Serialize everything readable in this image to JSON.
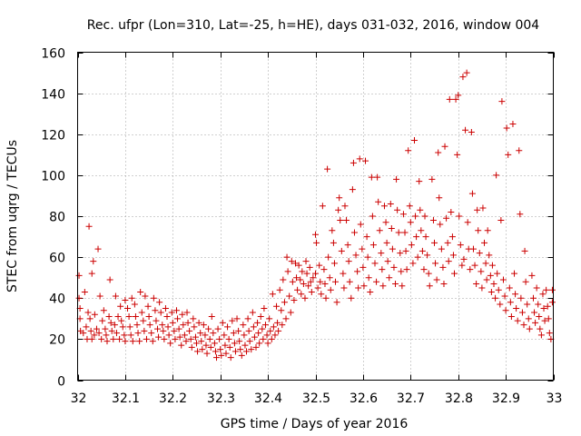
{
  "chart_data": {
    "type": "scatter",
    "title": "Rec. ufpr (Lon=310, Lat=-25, h=HE), days 031-032, 2016, window 004",
    "xlabel": "GPS time / Days of year 2016",
    "ylabel": "STEC from uqrg / TECUs",
    "xlim": [
      32,
      33
    ],
    "ylim": [
      0,
      160
    ],
    "x_ticks": [
      "32",
      "32.1",
      "32.2",
      "32.3",
      "32.4",
      "32.5",
      "32.6",
      "32.7",
      "32.8",
      "32.9",
      "33"
    ],
    "y_ticks": [
      "0",
      "20",
      "40",
      "60",
      "80",
      "100",
      "120",
      "140",
      "160"
    ],
    "grid": true,
    "marker": "plus",
    "color": "#cc0000",
    "points": [
      [
        32.003,
        40
      ],
      [
        32.003,
        51
      ],
      [
        32.005,
        35
      ],
      [
        32.005,
        30
      ],
      [
        32.006,
        24
      ],
      [
        32.012,
        23
      ],
      [
        32.015,
        43
      ],
      [
        32.018,
        26
      ],
      [
        32.02,
        20
      ],
      [
        32.022,
        33
      ],
      [
        32.024,
        75
      ],
      [
        32.026,
        30
      ],
      [
        32.028,
        24
      ],
      [
        32.03,
        52
      ],
      [
        32.03,
        20
      ],
      [
        32.033,
        58
      ],
      [
        32.035,
        22
      ],
      [
        32.036,
        32
      ],
      [
        32.04,
        25
      ],
      [
        32.043,
        64
      ],
      [
        32.045,
        23
      ],
      [
        32.047,
        41
      ],
      [
        32.05,
        20
      ],
      [
        32.052,
        29
      ],
      [
        32.055,
        34
      ],
      [
        32.058,
        25
      ],
      [
        32.06,
        22
      ],
      [
        32.062,
        19
      ],
      [
        32.066,
        31
      ],
      [
        32.068,
        49
      ],
      [
        32.07,
        28
      ],
      [
        32.072,
        24
      ],
      [
        32.075,
        20
      ],
      [
        32.078,
        27
      ],
      [
        32.08,
        41
      ],
      [
        32.082,
        23
      ],
      [
        32.085,
        31
      ],
      [
        32.088,
        20
      ],
      [
        32.09,
        36
      ],
      [
        32.092,
        29
      ],
      [
        32.095,
        26
      ],
      [
        32.098,
        22
      ],
      [
        32.1,
        39
      ],
      [
        32.1,
        19
      ],
      [
        32.105,
        35
      ],
      [
        32.108,
        31
      ],
      [
        32.11,
        26
      ],
      [
        32.112,
        22
      ],
      [
        32.114,
        40
      ],
      [
        32.116,
        19
      ],
      [
        32.12,
        37
      ],
      [
        32.122,
        31
      ],
      [
        32.125,
        27
      ],
      [
        32.127,
        23
      ],
      [
        32.13,
        19
      ],
      [
        32.132,
        43
      ],
      [
        32.135,
        33
      ],
      [
        32.138,
        29
      ],
      [
        32.14,
        24
      ],
      [
        32.142,
        41
      ],
      [
        32.145,
        20
      ],
      [
        32.148,
        36
      ],
      [
        32.15,
        31
      ],
      [
        32.152,
        27
      ],
      [
        32.155,
        23
      ],
      [
        32.158,
        19
      ],
      [
        32.16,
        40
      ],
      [
        32.163,
        34
      ],
      [
        32.165,
        29
      ],
      [
        32.168,
        25
      ],
      [
        32.17,
        21
      ],
      [
        32.172,
        38
      ],
      [
        32.175,
        33
      ],
      [
        32.178,
        27
      ],
      [
        32.18,
        24
      ],
      [
        32.182,
        20
      ],
      [
        32.185,
        35
      ],
      [
        32.188,
        31
      ],
      [
        32.19,
        26
      ],
      [
        32.192,
        22
      ],
      [
        32.195,
        18
      ],
      [
        32.198,
        33
      ],
      [
        32.2,
        28
      ],
      [
        32.203,
        24
      ],
      [
        32.205,
        20
      ],
      [
        32.208,
        34
      ],
      [
        32.21,
        30
      ],
      [
        32.213,
        25
      ],
      [
        32.215,
        21
      ],
      [
        32.218,
        17
      ],
      [
        32.22,
        32
      ],
      [
        32.222,
        27
      ],
      [
        32.225,
        22
      ],
      [
        32.228,
        19
      ],
      [
        32.23,
        33
      ],
      [
        32.232,
        28
      ],
      [
        32.235,
        24
      ],
      [
        32.238,
        20
      ],
      [
        32.24,
        16
      ],
      [
        32.243,
        30
      ],
      [
        32.245,
        26
      ],
      [
        32.248,
        21
      ],
      [
        32.25,
        18
      ],
      [
        32.252,
        14
      ],
      [
        32.255,
        28
      ],
      [
        32.258,
        23
      ],
      [
        32.26,
        19
      ],
      [
        32.262,
        15
      ],
      [
        32.265,
        27
      ],
      [
        32.268,
        22
      ],
      [
        32.27,
        17
      ],
      [
        32.272,
        13
      ],
      [
        32.275,
        25
      ],
      [
        32.278,
        20
      ],
      [
        32.28,
        16
      ],
      [
        32.282,
        31
      ],
      [
        32.285,
        23
      ],
      [
        32.288,
        18
      ],
      [
        32.29,
        14
      ],
      [
        32.292,
        11
      ],
      [
        32.295,
        25
      ],
      [
        32.298,
        20
      ],
      [
        32.3,
        15
      ],
      [
        32.302,
        12
      ],
      [
        32.305,
        28
      ],
      [
        32.308,
        22
      ],
      [
        32.31,
        17
      ],
      [
        32.312,
        13
      ],
      [
        32.315,
        26
      ],
      [
        32.318,
        20
      ],
      [
        32.32,
        16
      ],
      [
        32.322,
        11
      ],
      [
        32.325,
        29
      ],
      [
        32.328,
        23
      ],
      [
        32.33,
        18
      ],
      [
        32.332,
        14
      ],
      [
        32.335,
        30
      ],
      [
        32.338,
        24
      ],
      [
        32.34,
        19
      ],
      [
        32.342,
        15
      ],
      [
        32.345,
        12
      ],
      [
        32.348,
        27
      ],
      [
        32.35,
        22
      ],
      [
        32.352,
        17
      ],
      [
        32.355,
        14
      ],
      [
        32.358,
        30
      ],
      [
        32.36,
        24
      ],
      [
        32.362,
        19
      ],
      [
        32.365,
        15
      ],
      [
        32.368,
        33
      ],
      [
        32.37,
        26
      ],
      [
        32.372,
        21
      ],
      [
        32.375,
        16
      ],
      [
        32.378,
        28
      ],
      [
        32.38,
        23
      ],
      [
        32.382,
        18
      ],
      [
        32.385,
        31
      ],
      [
        32.388,
        25
      ],
      [
        32.39,
        20
      ],
      [
        32.392,
        35
      ],
      [
        32.395,
        27
      ],
      [
        32.398,
        22
      ],
      [
        32.4,
        18
      ],
      [
        32.403,
        30
      ],
      [
        32.405,
        24
      ],
      [
        32.408,
        20
      ],
      [
        32.41,
        42
      ],
      [
        32.412,
        26
      ],
      [
        32.415,
        22
      ],
      [
        32.418,
        36
      ],
      [
        32.42,
        28
      ],
      [
        32.422,
        24
      ],
      [
        32.425,
        44
      ],
      [
        32.428,
        34
      ],
      [
        32.43,
        27
      ],
      [
        32.432,
        49
      ],
      [
        32.435,
        38
      ],
      [
        32.438,
        30
      ],
      [
        32.44,
        60
      ],
      [
        32.442,
        53
      ],
      [
        32.445,
        41
      ],
      [
        32.448,
        33
      ],
      [
        32.45,
        58
      ],
      [
        32.452,
        48
      ],
      [
        32.455,
        39
      ],
      [
        32.458,
        57
      ],
      [
        32.46,
        50
      ],
      [
        32.462,
        44
      ],
      [
        32.465,
        56
      ],
      [
        32.468,
        49
      ],
      [
        32.47,
        42
      ],
      [
        32.472,
        53
      ],
      [
        32.475,
        47
      ],
      [
        32.478,
        40
      ],
      [
        32.48,
        58
      ],
      [
        32.482,
        52
      ],
      [
        32.485,
        46
      ],
      [
        32.488,
        55
      ],
      [
        32.49,
        48
      ],
      [
        32.492,
        43
      ],
      [
        32.495,
        50
      ],
      [
        32.5,
        52
      ],
      [
        32.5,
        71
      ],
      [
        32.502,
        67
      ],
      [
        32.505,
        45
      ],
      [
        32.508,
        56
      ],
      [
        32.51,
        48
      ],
      [
        32.512,
        42
      ],
      [
        32.515,
        85
      ],
      [
        32.518,
        54
      ],
      [
        32.52,
        47
      ],
      [
        32.522,
        40
      ],
      [
        32.525,
        103
      ],
      [
        32.527,
        60
      ],
      [
        32.53,
        50
      ],
      [
        32.532,
        44
      ],
      [
        32.535,
        73
      ],
      [
        32.538,
        67
      ],
      [
        32.54,
        57
      ],
      [
        32.542,
        48
      ],
      [
        32.545,
        38
      ],
      [
        32.548,
        83
      ],
      [
        32.55,
        89
      ],
      [
        32.552,
        78
      ],
      [
        32.555,
        63
      ],
      [
        32.558,
        52
      ],
      [
        32.56,
        45
      ],
      [
        32.562,
        85
      ],
      [
        32.565,
        78
      ],
      [
        32.568,
        66
      ],
      [
        32.57,
        58
      ],
      [
        32.572,
        48
      ],
      [
        32.575,
        40
      ],
      [
        32.578,
        93
      ],
      [
        32.58,
        106
      ],
      [
        32.582,
        72
      ],
      [
        32.585,
        61
      ],
      [
        32.588,
        53
      ],
      [
        32.59,
        45
      ],
      [
        32.593,
        108
      ],
      [
        32.595,
        76
      ],
      [
        32.598,
        64
      ],
      [
        32.6,
        55
      ],
      [
        32.602,
        46
      ],
      [
        32.605,
        107
      ],
      [
        32.608,
        70
      ],
      [
        32.61,
        60
      ],
      [
        32.612,
        50
      ],
      [
        32.615,
        43
      ],
      [
        32.618,
        99
      ],
      [
        32.62,
        80
      ],
      [
        32.622,
        66
      ],
      [
        32.625,
        57
      ],
      [
        32.628,
        48
      ],
      [
        32.63,
        99
      ],
      [
        32.632,
        87
      ],
      [
        32.635,
        73
      ],
      [
        32.638,
        62
      ],
      [
        32.64,
        54
      ],
      [
        32.642,
        46
      ],
      [
        32.645,
        85
      ],
      [
        32.648,
        77
      ],
      [
        32.65,
        67
      ],
      [
        32.652,
        58
      ],
      [
        32.655,
        50
      ],
      [
        32.658,
        86
      ],
      [
        32.66,
        74
      ],
      [
        32.662,
        64
      ],
      [
        32.665,
        55
      ],
      [
        32.668,
        47
      ],
      [
        32.67,
        98
      ],
      [
        32.672,
        83
      ],
      [
        32.675,
        72
      ],
      [
        32.678,
        62
      ],
      [
        32.68,
        53
      ],
      [
        32.682,
        46
      ],
      [
        32.685,
        81
      ],
      [
        32.688,
        72
      ],
      [
        32.69,
        63
      ],
      [
        32.692,
        54
      ],
      [
        32.695,
        112
      ],
      [
        32.698,
        85
      ],
      [
        32.7,
        77
      ],
      [
        32.702,
        66
      ],
      [
        32.705,
        57
      ],
      [
        32.708,
        117
      ],
      [
        32.71,
        80
      ],
      [
        32.712,
        70
      ],
      [
        32.715,
        60
      ],
      [
        32.718,
        97
      ],
      [
        32.72,
        83
      ],
      [
        32.722,
        73
      ],
      [
        32.725,
        63
      ],
      [
        32.728,
        54
      ],
      [
        32.73,
        80
      ],
      [
        32.732,
        70
      ],
      [
        32.735,
        61
      ],
      [
        32.738,
        52
      ],
      [
        32.74,
        46
      ],
      [
        32.745,
        98
      ],
      [
        32.748,
        78
      ],
      [
        32.75,
        67
      ],
      [
        32.752,
        57
      ],
      [
        32.755,
        49
      ],
      [
        32.758,
        111
      ],
      [
        32.76,
        89
      ],
      [
        32.762,
        76
      ],
      [
        32.765,
        64
      ],
      [
        32.768,
        55
      ],
      [
        32.77,
        47
      ],
      [
        32.772,
        114
      ],
      [
        32.775,
        79
      ],
      [
        32.778,
        67
      ],
      [
        32.78,
        58
      ],
      [
        32.782,
        137
      ],
      [
        32.785,
        82
      ],
      [
        32.788,
        70
      ],
      [
        32.79,
        61
      ],
      [
        32.792,
        52
      ],
      [
        32.795,
        137
      ],
      [
        32.798,
        110
      ],
      [
        32.8,
        139
      ],
      [
        32.802,
        80
      ],
      [
        32.805,
        66
      ],
      [
        32.808,
        56
      ],
      [
        32.81,
        148
      ],
      [
        32.812,
        59
      ],
      [
        32.815,
        122
      ],
      [
        32.818,
        150
      ],
      [
        32.82,
        77
      ],
      [
        32.822,
        64
      ],
      [
        32.825,
        54
      ],
      [
        32.828,
        121
      ],
      [
        32.83,
        91
      ],
      [
        32.832,
        64
      ],
      [
        32.835,
        56
      ],
      [
        32.838,
        47
      ],
      [
        32.84,
        83
      ],
      [
        32.842,
        73
      ],
      [
        32.845,
        62
      ],
      [
        32.848,
        53
      ],
      [
        32.85,
        45
      ],
      [
        32.852,
        84
      ],
      [
        32.855,
        67
      ],
      [
        32.858,
        57
      ],
      [
        32.86,
        49
      ],
      [
        32.862,
        73
      ],
      [
        32.865,
        61
      ],
      [
        32.868,
        51
      ],
      [
        32.87,
        43
      ],
      [
        32.872,
        56
      ],
      [
        32.875,
        47
      ],
      [
        32.878,
        40
      ],
      [
        32.88,
        100
      ],
      [
        32.882,
        52
      ],
      [
        32.885,
        44
      ],
      [
        32.888,
        37
      ],
      [
        32.89,
        78
      ],
      [
        32.892,
        136
      ],
      [
        32.895,
        49
      ],
      [
        32.898,
        41
      ],
      [
        32.9,
        34
      ],
      [
        32.902,
        123
      ],
      [
        32.905,
        110
      ],
      [
        32.908,
        45
      ],
      [
        32.91,
        38
      ],
      [
        32.912,
        31
      ],
      [
        32.915,
        125
      ],
      [
        32.918,
        52
      ],
      [
        32.92,
        42
      ],
      [
        32.922,
        35
      ],
      [
        32.925,
        29
      ],
      [
        32.928,
        112
      ],
      [
        32.93,
        81
      ],
      [
        32.932,
        40
      ],
      [
        32.935,
        33
      ],
      [
        32.938,
        27
      ],
      [
        32.94,
        63
      ],
      [
        32.942,
        48
      ],
      [
        32.945,
        37
      ],
      [
        32.948,
        30
      ],
      [
        32.95,
        25
      ],
      [
        32.955,
        51
      ],
      [
        32.958,
        40
      ],
      [
        32.96,
        33
      ],
      [
        32.962,
        28
      ],
      [
        32.965,
        45
      ],
      [
        32.968,
        37
      ],
      [
        32.97,
        31
      ],
      [
        32.972,
        25
      ],
      [
        32.975,
        22
      ],
      [
        32.978,
        42
      ],
      [
        32.98,
        35
      ],
      [
        32.982,
        29
      ],
      [
        32.985,
        44
      ],
      [
        32.988,
        36
      ],
      [
        32.99,
        30
      ],
      [
        32.992,
        23
      ],
      [
        32.995,
        20
      ],
      [
        32.998,
        44
      ],
      [
        32.998,
        38
      ]
    ]
  }
}
